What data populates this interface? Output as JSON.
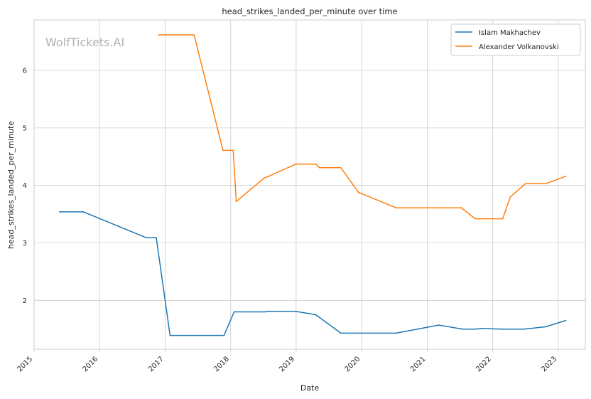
{
  "chart_data": {
    "type": "line",
    "title": "head_strikes_landed_per_minute over time",
    "xlabel": "Date",
    "ylabel": "head_strikes_landed_per_minute",
    "watermark": "WolfTickets.AI",
    "grid": true,
    "legend_position": "top-right",
    "x_ticks": [
      "2015",
      "2016",
      "2017",
      "2018",
      "2019",
      "2020",
      "2021",
      "2022",
      "2023"
    ],
    "y_ticks": [
      "2",
      "3",
      "4",
      "5",
      "6"
    ],
    "xlim": [
      "2015-01-01",
      "2023-06-01"
    ],
    "ylim": [
      1.15,
      6.88
    ],
    "series": [
      {
        "name": "Islam Makhachev",
        "color": "#1f77b4",
        "x": [
          "2015-05-23",
          "2015-10-03",
          "2016-09-17",
          "2016-11-12",
          "2017-01-28",
          "2017-11-25",
          "2018-01-20",
          "2018-07-07",
          "2018-08-04",
          "2018-12-29",
          "2019-04-20",
          "2019-09-07",
          "2020-07-11",
          "2021-03-06",
          "2021-07-17",
          "2021-09-25",
          "2021-10-30",
          "2022-02-25",
          "2022-06-25",
          "2022-10-22",
          "2023-02-12"
        ],
        "values": [
          3.54,
          3.54,
          3.09,
          3.09,
          1.39,
          1.39,
          1.8,
          1.8,
          1.81,
          1.81,
          1.75,
          1.43,
          1.43,
          1.57,
          1.5,
          1.5,
          1.51,
          1.5,
          1.5,
          1.54,
          1.65
        ]
      },
      {
        "name": "Alexander Volkanovski",
        "color": "#ff7f0e",
        "x": [
          "2016-11-26",
          "2017-06-11",
          "2017-11-19",
          "2018-01-15",
          "2018-02-01",
          "2018-07-07",
          "2018-08-01",
          "2018-12-29",
          "2019-04-20",
          "2019-05-11",
          "2019-09-07",
          "2019-12-14",
          "2020-07-11",
          "2021-07-10",
          "2021-09-25",
          "2022-02-25",
          "2022-04-09",
          "2022-07-02",
          "2022-10-22",
          "2023-02-12"
        ],
        "values": [
          6.62,
          6.62,
          4.61,
          4.61,
          3.72,
          4.13,
          4.16,
          4.37,
          4.37,
          4.31,
          4.31,
          3.88,
          3.61,
          3.61,
          3.42,
          3.42,
          3.8,
          4.03,
          4.03,
          4.16
        ]
      }
    ]
  }
}
